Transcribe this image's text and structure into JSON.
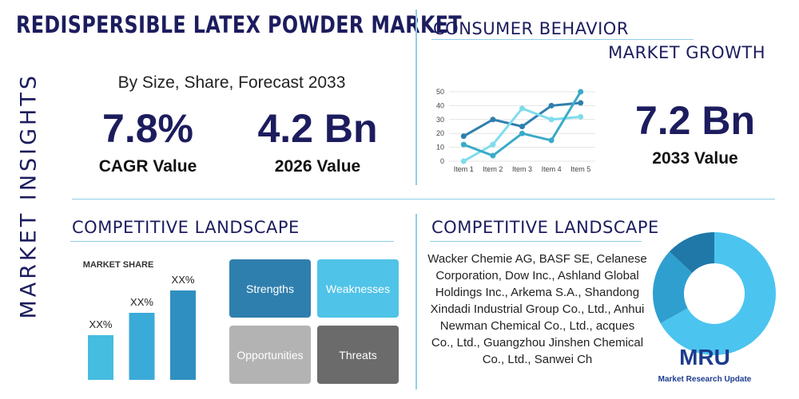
{
  "header": {
    "title": "REDISPERSIBLE LATEX POWDER MARKET",
    "side_label": "MARKET INSIGHTS"
  },
  "summary": {
    "subtitle": "By Size, Share, Forecast 2033",
    "cagr": {
      "value": "7.8%",
      "label": "CAGR Value"
    },
    "current": {
      "value": "4.2 Bn",
      "label": "2026 Value"
    }
  },
  "consumer": {
    "title": "CONSUMER BEHAVIOR",
    "subtitle": "MARKET GROWTH",
    "forecast": {
      "value": "7.2 Bn",
      "label": "2033 Value"
    },
    "line_chart": {
      "type": "line",
      "categories": [
        "Item 1",
        "Item 2",
        "Item 3",
        "Item 4",
        "Item 5"
      ],
      "ylim": [
        0,
        50
      ],
      "yticks": [
        0,
        10,
        20,
        30,
        40,
        50
      ],
      "series": [
        {
          "color": "#2f7fae",
          "values": [
            18,
            30,
            25,
            40,
            42
          ]
        },
        {
          "color": "#7fdcec",
          "values": [
            0,
            12,
            38,
            30,
            32
          ]
        },
        {
          "color": "#3aaac8",
          "values": [
            12,
            4,
            20,
            15,
            50
          ]
        }
      ]
    }
  },
  "landscape": {
    "title": "COMPETITIVE LANDSCAPE",
    "bar_chart": {
      "type": "bar",
      "title": "MARKET SHARE",
      "colors": [
        "#45bde0",
        "#3aaad8",
        "#2f8fc0"
      ],
      "values": [
        50,
        75,
        100
      ],
      "value_labels": [
        "XX%",
        "XX%",
        "XX%"
      ]
    },
    "swot": [
      "Strengths",
      "Weaknesses",
      "Opportunities",
      "Threats"
    ]
  },
  "companies": {
    "title": "COMPETITIVE LANDSCAPE",
    "text": "Wacker Chemie AG, BASF SE, Celanese Corporation, Dow Inc., Ashland Global Holdings Inc., Arkema S.A., Shandong Xindadi Industrial Group Co., Ltd., Anhui Newman Chemical Co., Ltd., acques Co., Ltd., Guangzhou Jinshen Chemical Co., Ltd., Sanwei Ch",
    "donut": {
      "type": "pie",
      "values": [
        67,
        20,
        13
      ],
      "colors": [
        "#4cc4f0",
        "#2f9fd0",
        "#1f78a8"
      ]
    }
  },
  "logo": {
    "mark": "MRU",
    "name": "Market Research Update"
  }
}
